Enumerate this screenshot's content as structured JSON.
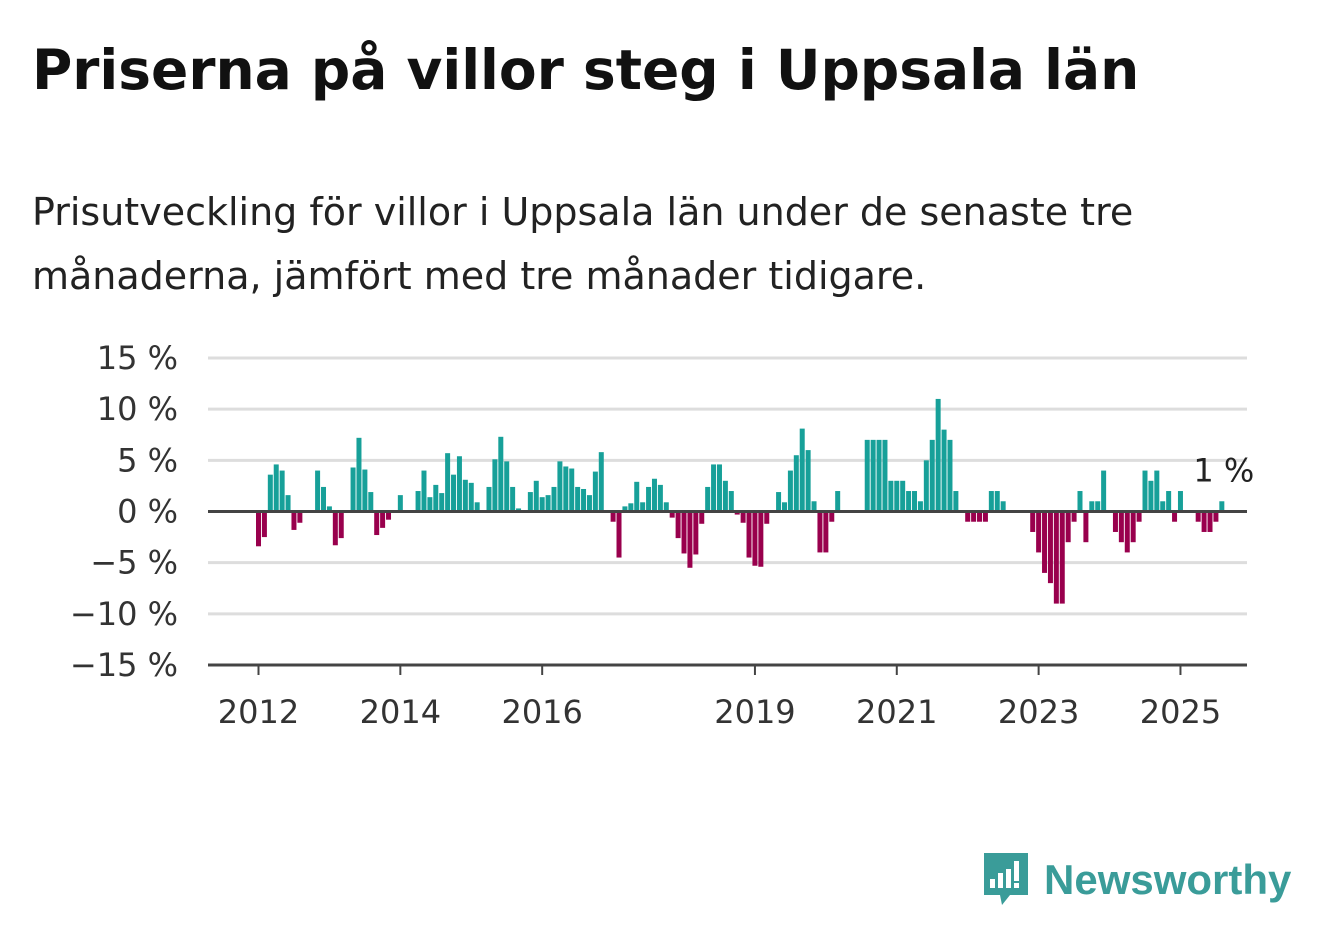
{
  "title": "Priserna på villor steg i Uppsala län",
  "subtitle": "Prisutveckling för villor i Uppsala län under de senaste tre månaderna, jämfört med tre månader tidigare.",
  "brand": {
    "name": "Newsworthy"
  },
  "colors": {
    "positive": "#17a099",
    "negative": "#99004d",
    "grid": "#dddddd",
    "axis": "#444444"
  },
  "chart_data": {
    "type": "bar",
    "title": "Priserna på villor steg i Uppsala län",
    "xlabel": "",
    "ylabel": "",
    "ylim": [
      -15,
      15
    ],
    "y_ticks": [
      15,
      10,
      5,
      0,
      -5,
      -10,
      -15
    ],
    "y_tick_labels": [
      "15 %",
      "10 %",
      "5 %",
      "0 %",
      "−5 %",
      "−10 %",
      "−15 %"
    ],
    "x_ticks": [
      {
        "label": "2012",
        "index": 0
      },
      {
        "label": "2014",
        "index": 24
      },
      {
        "label": "2016",
        "index": 48
      },
      {
        "label": "2019",
        "index": 84
      },
      {
        "label": "2021",
        "index": 108
      },
      {
        "label": "2023",
        "index": 132
      },
      {
        "label": "2025",
        "index": 156
      }
    ],
    "grid": true,
    "last_value_label": "1 %",
    "values": [
      -3.4,
      -2.5,
      3.6,
      4.6,
      4.0,
      1.6,
      -1.8,
      -1.1,
      0,
      0,
      4.0,
      2.4,
      0.5,
      -3.3,
      -2.6,
      0,
      4.3,
      7.2,
      4.1,
      1.9,
      -2.3,
      -1.6,
      -0.8,
      0,
      1.6,
      0,
      0,
      2.0,
      4.0,
      1.4,
      2.6,
      1.8,
      5.7,
      3.6,
      5.4,
      3.1,
      2.8,
      0.9,
      0,
      2.4,
      5.1,
      7.3,
      4.9,
      2.4,
      0.3,
      0,
      1.9,
      3.0,
      1.4,
      1.6,
      2.4,
      4.9,
      4.4,
      4.2,
      2.4,
      2.2,
      1.6,
      3.9,
      5.8,
      0,
      -1.0,
      -4.5,
      0.5,
      0.8,
      2.9,
      0.9,
      2.4,
      3.2,
      2.6,
      0.9,
      -0.6,
      -2.6,
      -4.1,
      -5.5,
      -4.2,
      -1.2,
      2.4,
      4.6,
      4.6,
      3.0,
      2.0,
      -0.3,
      -1.1,
      -4.5,
      -5.3,
      -5.4,
      -1.2,
      0,
      1.9,
      0.9,
      4.0,
      5.5,
      8.1,
      6.0,
      1.0,
      -4.0,
      -4.0,
      -1.0,
      2.0,
      0,
      0,
      0,
      0,
      7.0,
      7.0,
      7.0,
      7.0,
      3.0,
      3.0,
      3.0,
      2.0,
      2.0,
      1.0,
      5.0,
      7.0,
      11.0,
      8.0,
      7.0,
      2.0,
      0,
      -1.0,
      -1.0,
      -1.0,
      -1.0,
      2.0,
      2.0,
      1.0,
      0,
      0,
      0,
      0,
      -2.0,
      -4.0,
      -6.0,
      -7.0,
      -9.0,
      -9.0,
      -3.0,
      -1.0,
      2.0,
      -3.0,
      1.0,
      1.0,
      4.0,
      0,
      -2.0,
      -3.0,
      -4.0,
      -3.0,
      -1.0,
      4.0,
      3.0,
      4.0,
      1.0,
      2.0,
      -1.0,
      2.0,
      0,
      0,
      -1.0,
      -2.0,
      -2.0,
      -1.0,
      1.0
    ]
  }
}
